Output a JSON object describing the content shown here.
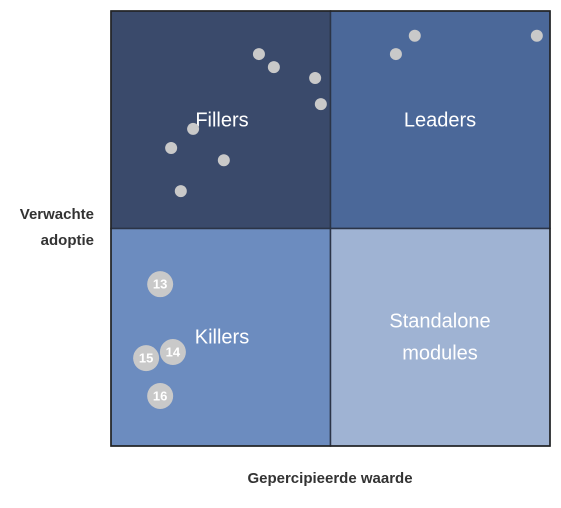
{
  "chart_data": {
    "type": "scatter",
    "xlabel": "Gepercipieerde waarde",
    "ylabel": [
      "Verwachte",
      "adoptie"
    ],
    "xlim": [
      0,
      100
    ],
    "ylim": [
      0,
      100
    ],
    "quadrants": [
      {
        "label": [
          "Fillers"
        ],
        "color": "#3a4a6b"
      },
      {
        "label": [
          "Leaders"
        ],
        "color": "#4b6899"
      },
      {
        "label": [
          "Killers"
        ],
        "color": "#6c8cbf"
      },
      {
        "label": [
          "Standalone",
          "modules"
        ],
        "color": "#9fb3d3"
      }
    ],
    "point_color": "#c9c9c9",
    "x": [
      33.7,
      37.1,
      46.5,
      47.8,
      18.7,
      13.7,
      25.7,
      15.9,
      69.2,
      64.9,
      97.0,
      11.2,
      14.1,
      8.0,
      11.2
    ],
    "y": [
      90.1,
      87.1,
      84.6,
      78.6,
      72.9,
      68.5,
      65.7,
      58.6,
      94.3,
      90.1,
      94.3,
      37.2,
      21.6,
      20.2,
      11.5
    ],
    "point_labels": [
      null,
      null,
      null,
      null,
      null,
      null,
      null,
      null,
      null,
      null,
      null,
      "13",
      "14",
      "15",
      "16"
    ]
  }
}
